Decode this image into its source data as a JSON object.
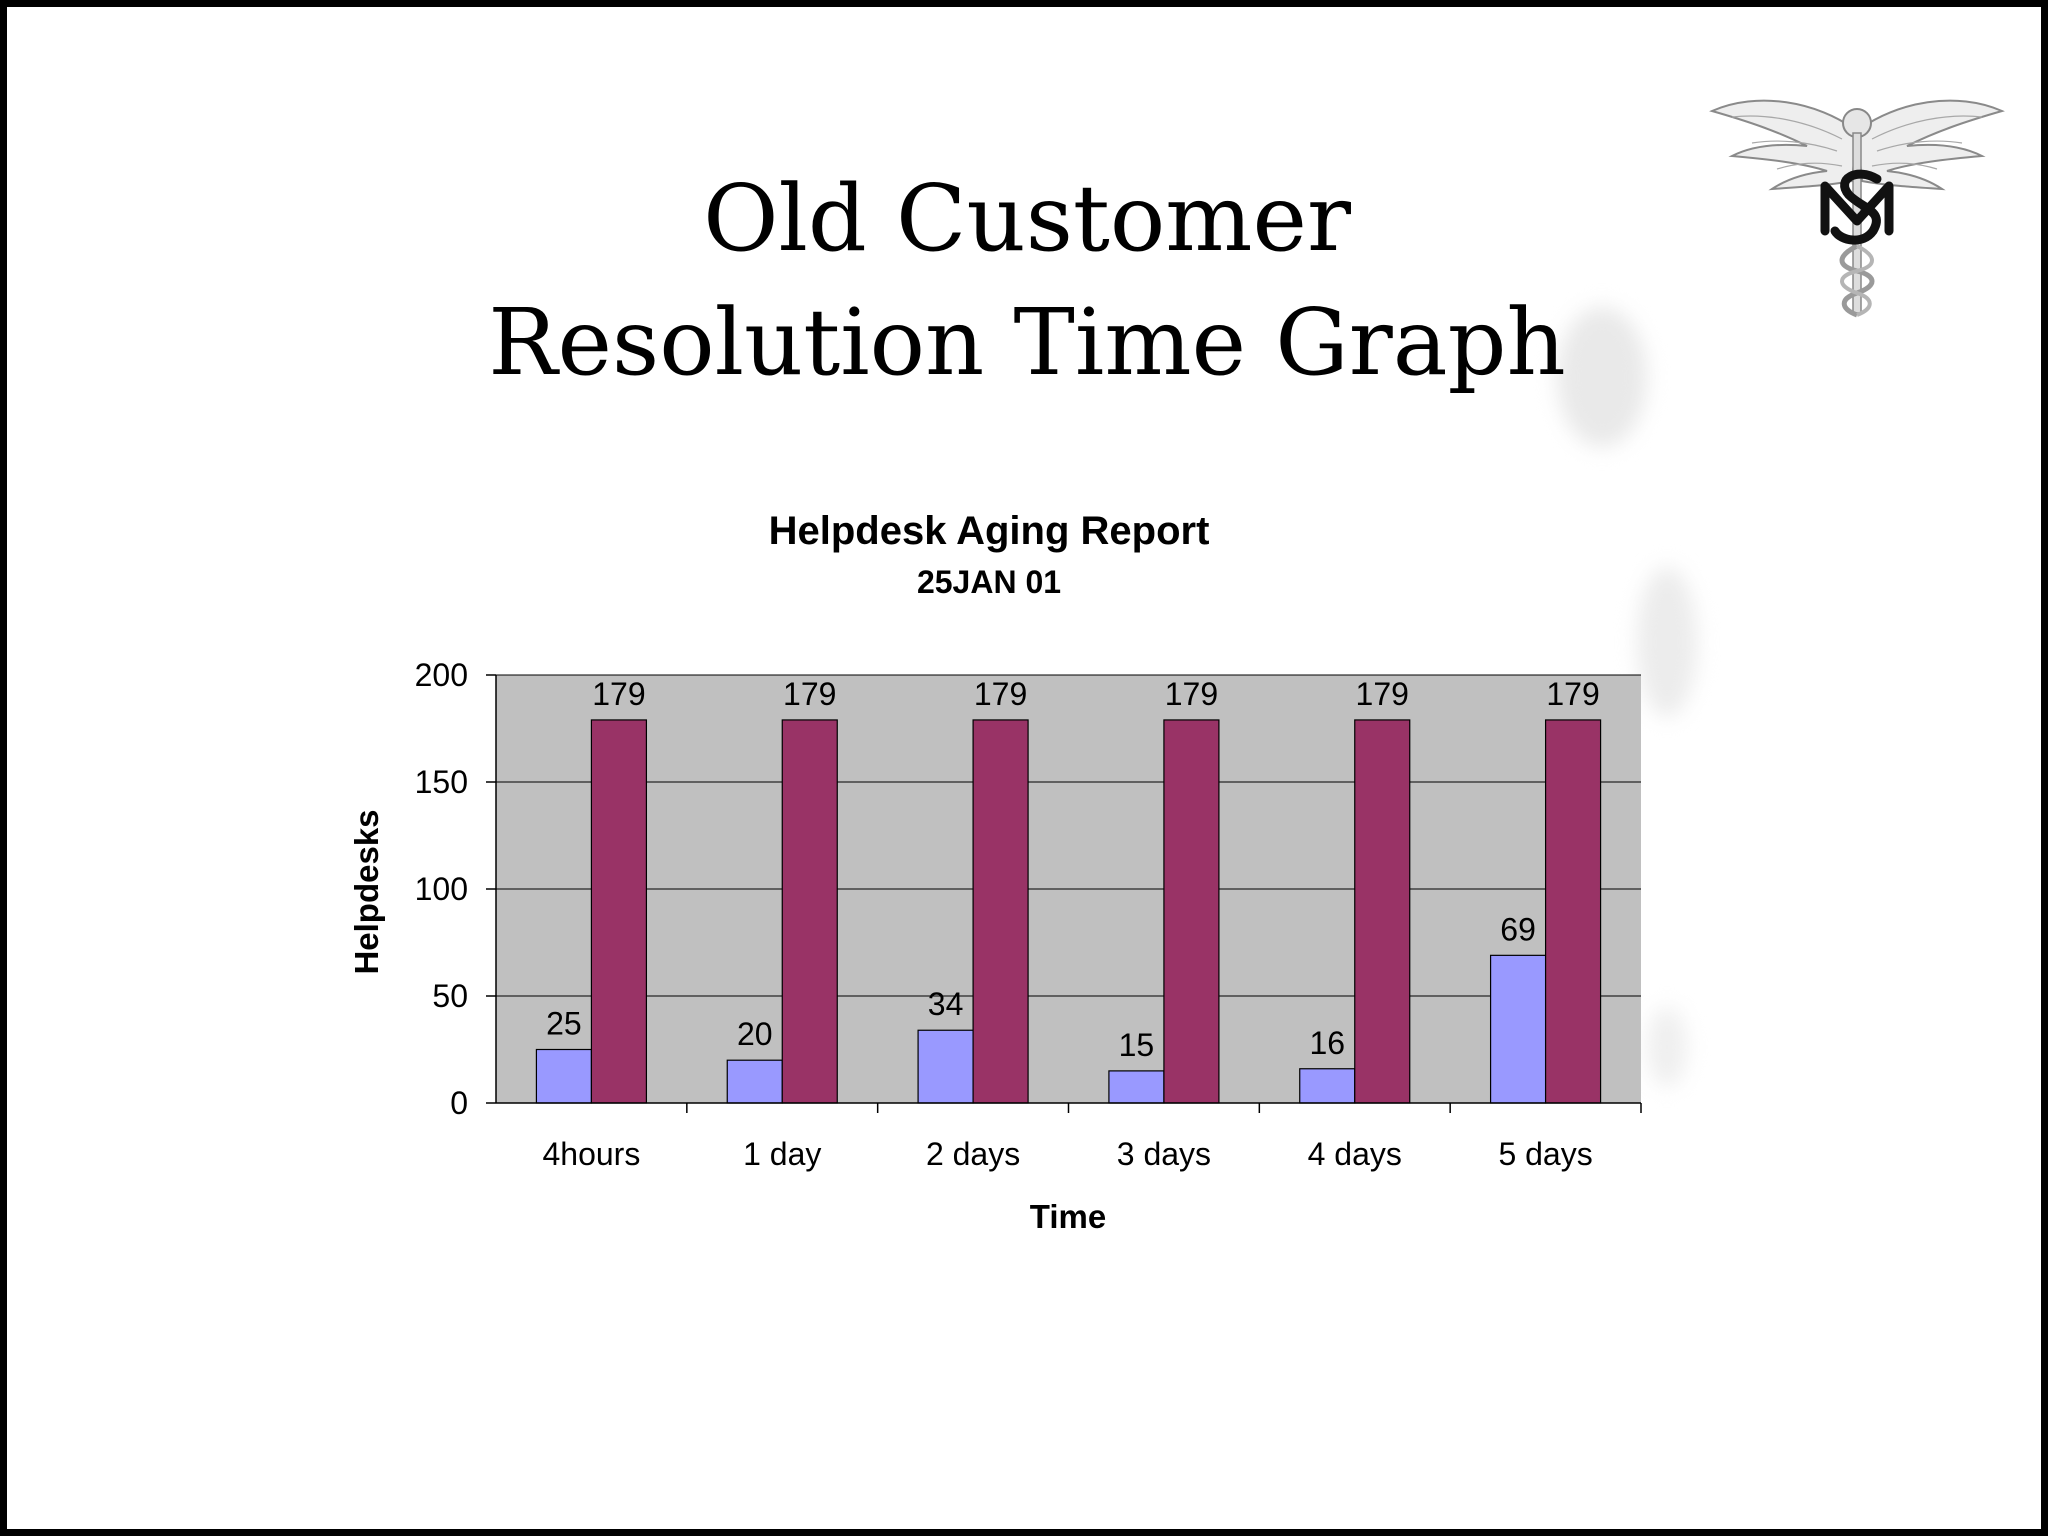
{
  "slide": {
    "title_lines": [
      "Old Customer",
      "Resolution Time Graph"
    ],
    "logo": {
      "name": "caduceus-insignia",
      "lettering": "MS"
    }
  },
  "chart_data": {
    "type": "bar",
    "title": "Helpdesk Aging Report",
    "subtitle": "25JAN 01",
    "xlabel": "Time",
    "ylabel": "Helpdesks",
    "categories": [
      "4hours",
      "1 day",
      "2 days",
      "3 days",
      "4 days",
      "5 days"
    ],
    "series": [
      {
        "values": [
          25,
          20,
          34,
          15,
          16,
          69
        ],
        "color": "#9999ff"
      },
      {
        "values": [
          179,
          179,
          179,
          179,
          179,
          179
        ],
        "color": "#993366"
      }
    ],
    "ylim": [
      0,
      200
    ],
    "yticks": [
      0,
      50,
      100,
      150,
      200
    ],
    "grid": true,
    "legend": "none",
    "plot_background": "#c0c0c0",
    "data_labels": true
  }
}
